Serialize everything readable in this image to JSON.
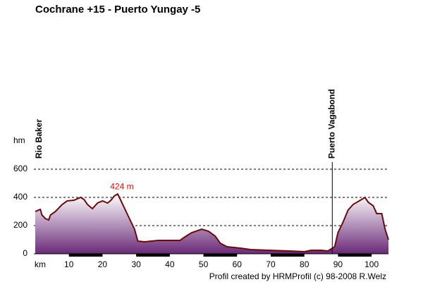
{
  "chart_data": {
    "type": "area",
    "title": "Cochrane +15 - Puerto Yungay -5",
    "x_label": "km",
    "y_label": "hm",
    "x": [
      0,
      1.5,
      2,
      3,
      4,
      4.5,
      6,
      8,
      9.5,
      11.5,
      13.5,
      14.5,
      15.5,
      17,
      18.5,
      20,
      21.5,
      22.5,
      23.5,
      24.5,
      25.5,
      27,
      28.5,
      29.5,
      30.5,
      32.5,
      34.5,
      36.5,
      40,
      43,
      44.5,
      46.5,
      49.5,
      51.5,
      53.5,
      55,
      57,
      61,
      64,
      69.5,
      75.5,
      80,
      82,
      85,
      87,
      89,
      90,
      91.5,
      93,
      94.5,
      97,
      98,
      99,
      100.5,
      101.5,
      103,
      104,
      105
    ],
    "values": [
      300,
      315,
      275,
      250,
      240,
      275,
      300,
      350,
      375,
      380,
      400,
      385,
      350,
      320,
      360,
      375,
      360,
      380,
      410,
      424,
      375,
      300,
      225,
      175,
      90,
      85,
      90,
      95,
      95,
      95,
      120,
      150,
      175,
      160,
      125,
      75,
      50,
      40,
      30,
      25,
      20,
      15,
      25,
      25,
      20,
      50,
      150,
      225,
      310,
      350,
      385,
      400,
      365,
      340,
      285,
      285,
      175,
      100
    ],
    "line_color": "#6b0a0a",
    "fill_color": "#6a2a78",
    "xlim": [
      0,
      105
    ],
    "xticks": [
      10,
      20,
      30,
      40,
      50,
      60,
      70,
      80,
      90,
      100
    ],
    "ylim": [
      0,
      600
    ],
    "yticks": [
      0,
      200,
      400,
      600
    ],
    "grid": true,
    "peak": {
      "value": 424,
      "label": "424 m"
    },
    "markers": [
      {
        "label": "Rio Baker",
        "x": 0
      },
      {
        "label": "Puerto Vagabond",
        "x": 88.3
      }
    ],
    "credit": "Profil created by HRMProfil (c) 98-2008 R.Welz"
  }
}
